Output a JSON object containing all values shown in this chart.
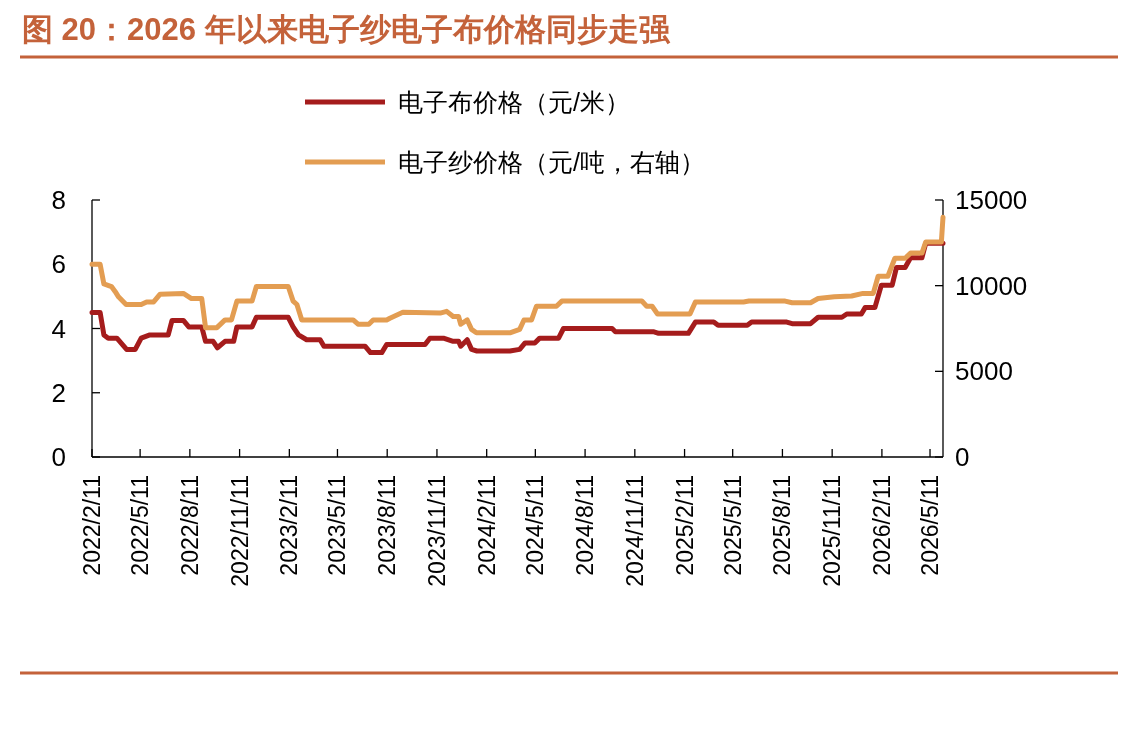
{
  "chart_data": {
    "type": "line",
    "title": "图 20：2026 年以来电子纱电子布价格同步走强",
    "legend": "top",
    "grid": false,
    "line_style": "solid",
    "xlim": [
      "2022-02-11",
      "2026-06-04"
    ],
    "xticks": [
      {
        "value": "2022-02-11",
        "label": "2022/2/11"
      },
      {
        "value": "2022-05-11",
        "label": "2022/5/11"
      },
      {
        "value": "2022-08-11",
        "label": "2022/8/11"
      },
      {
        "value": "2022-11-11",
        "label": "2022/11/11"
      },
      {
        "value": "2023-02-11",
        "label": "2023/2/11"
      },
      {
        "value": "2023-05-11",
        "label": "2023/5/11"
      },
      {
        "value": "2023-08-11",
        "label": "2023/8/11"
      },
      {
        "value": "2023-11-11",
        "label": "2023/11/11"
      },
      {
        "value": "2024-02-11",
        "label": "2024/2/11"
      },
      {
        "value": "2024-05-11",
        "label": "2024/5/11"
      },
      {
        "value": "2024-08-11",
        "label": "2024/8/11"
      },
      {
        "value": "2024-11-11",
        "label": "2024/11/11"
      },
      {
        "value": "2025-02-11",
        "label": "2025/2/11"
      },
      {
        "value": "2025-05-11",
        "label": "2025/5/11"
      },
      {
        "value": "2025-08-11",
        "label": "2025/8/11"
      },
      {
        "value": "2025-11-11",
        "label": "2025/11/11"
      },
      {
        "value": "2026-02-11",
        "label": "2026/2/11"
      },
      {
        "value": "2026-05-11",
        "label": "2026/5/11"
      }
    ],
    "ylim": [
      0,
      8
    ],
    "yticks": [
      0,
      2,
      4,
      6,
      8
    ],
    "y2lim": [
      0,
      15000
    ],
    "y2ticks": [
      0,
      5000,
      10000,
      15000
    ],
    "series": [
      {
        "name": "电子布价格（元/米）",
        "color": "#a51c1c",
        "x": [
          "2022-02-11",
          "2022-02-26",
          "2022-03-05",
          "2022-03-13",
          "2022-03-29",
          "2022-04-16",
          "2022-05-02",
          "2022-05-13",
          "2022-05-29",
          "2022-07-02",
          "2022-07-09",
          "2022-07-30",
          "2022-08-09",
          "2022-09-02",
          "2022-09-09",
          "2022-09-23",
          "2022-10-01",
          "2022-10-15",
          "2022-10-31",
          "2022-11-06",
          "2022-12-04",
          "2022-12-12",
          "2023-02-09",
          "2023-02-18",
          "2023-02-28",
          "2023-03-15",
          "2023-04-09",
          "2023-04-16",
          "2023-07-01",
          "2023-07-11",
          "2023-08-01",
          "2023-08-10",
          "2023-10-20",
          "2023-10-29",
          "2023-11-23",
          "2023-12-11",
          "2023-12-21",
          "2023-12-25",
          "2024-01-06",
          "2024-01-14",
          "2024-01-24",
          "2024-03-25",
          "2024-04-12",
          "2024-04-22",
          "2024-05-10",
          "2024-05-19",
          "2024-06-23",
          "2024-07-02",
          "2024-09-30",
          "2024-10-06",
          "2024-12-15",
          "2024-12-25",
          "2025-02-18",
          "2025-03-03",
          "2025-04-06",
          "2025-04-14",
          "2025-06-07",
          "2025-06-15",
          "2025-08-19",
          "2025-08-29",
          "2025-10-02",
          "2025-10-16",
          "2025-11-29",
          "2025-12-08",
          "2026-01-04",
          "2026-01-11",
          "2026-01-29",
          "2026-02-10",
          "2026-03-02",
          "2026-03-10",
          "2026-03-26",
          "2026-04-05",
          "2026-04-26",
          "2026-05-03",
          "2026-06-04"
        ],
        "values": [
          4.5,
          4.5,
          3.8,
          3.7,
          3.7,
          3.35,
          3.35,
          3.7,
          3.8,
          3.8,
          4.25,
          4.25,
          4.05,
          4.05,
          3.6,
          3.6,
          3.4,
          3.6,
          3.6,
          4.05,
          4.05,
          4.35,
          4.35,
          4.05,
          3.8,
          3.65,
          3.65,
          3.45,
          3.45,
          3.25,
          3.25,
          3.5,
          3.5,
          3.7,
          3.7,
          3.6,
          3.6,
          3.45,
          3.65,
          3.35,
          3.3,
          3.3,
          3.35,
          3.55,
          3.55,
          3.7,
          3.7,
          4.0,
          4.0,
          3.9,
          3.9,
          3.85,
          3.85,
          4.2,
          4.2,
          4.1,
          4.1,
          4.2,
          4.2,
          4.15,
          4.15,
          4.35,
          4.35,
          4.45,
          4.45,
          4.65,
          4.65,
          5.35,
          5.35,
          5.9,
          5.9,
          6.2,
          6.2,
          6.65,
          6.65
        ]
      },
      {
        "name": "电子纱价格（元/吨，右轴）",
        "color": "#e39d52",
        "axis": "y2",
        "x": [
          "2022-02-11",
          "2022-02-26",
          "2022-03-05",
          "2022-03-19",
          "2022-03-26",
          "2022-04-01",
          "2022-04-15",
          "2022-05-13",
          "2022-05-23",
          "2022-06-05",
          "2022-06-17",
          "2022-07-30",
          "2022-08-14",
          "2022-09-02",
          "2022-09-09",
          "2022-09-30",
          "2022-10-15",
          "2022-10-27",
          "2022-11-06",
          "2022-12-04",
          "2022-12-12",
          "2023-02-09",
          "2023-02-18",
          "2023-02-25",
          "2023-03-06",
          "2023-06-09",
          "2023-06-18",
          "2023-07-08",
          "2023-07-16",
          "2023-08-10",
          "2023-08-16",
          "2023-09-09",
          "2023-11-17",
          "2023-11-29",
          "2023-12-11",
          "2023-12-21",
          "2023-12-25",
          "2024-01-06",
          "2024-01-14",
          "2024-01-23",
          "2024-03-25",
          "2024-04-12",
          "2024-04-20",
          "2024-05-04",
          "2024-05-13",
          "2024-06-19",
          "2024-06-29",
          "2024-11-24",
          "2024-12-03",
          "2024-12-13",
          "2024-12-23",
          "2025-02-21",
          "2025-03-03",
          "2025-05-31",
          "2025-06-10",
          "2025-08-16",
          "2025-08-29",
          "2025-10-02",
          "2025-10-16",
          "2025-11-15",
          "2025-12-17",
          "2026-01-07",
          "2026-01-26",
          "2026-02-04",
          "2026-02-22",
          "2026-03-07",
          "2026-03-26",
          "2026-04-05",
          "2026-04-26",
          "2026-05-03",
          "2026-06-01",
          "2026-06-04"
        ],
        "values": [
          11250,
          11250,
          10100,
          9950,
          9650,
          9350,
          8900,
          8900,
          9050,
          9050,
          9500,
          9550,
          9250,
          9250,
          7550,
          7550,
          8000,
          8000,
          9100,
          9100,
          9950,
          9950,
          9100,
          8900,
          8000,
          8000,
          7750,
          7750,
          8000,
          8000,
          8100,
          8450,
          8400,
          8500,
          8200,
          8200,
          7750,
          8000,
          7450,
          7250,
          7250,
          7450,
          8000,
          8000,
          8800,
          8800,
          9100,
          9100,
          8800,
          8800,
          8350,
          8350,
          9050,
          9050,
          9100,
          9100,
          9000,
          9000,
          9250,
          9350,
          9400,
          9550,
          9550,
          10550,
          10550,
          11600,
          11600,
          11900,
          11900,
          12550,
          12550,
          14000
        ]
      }
    ]
  }
}
